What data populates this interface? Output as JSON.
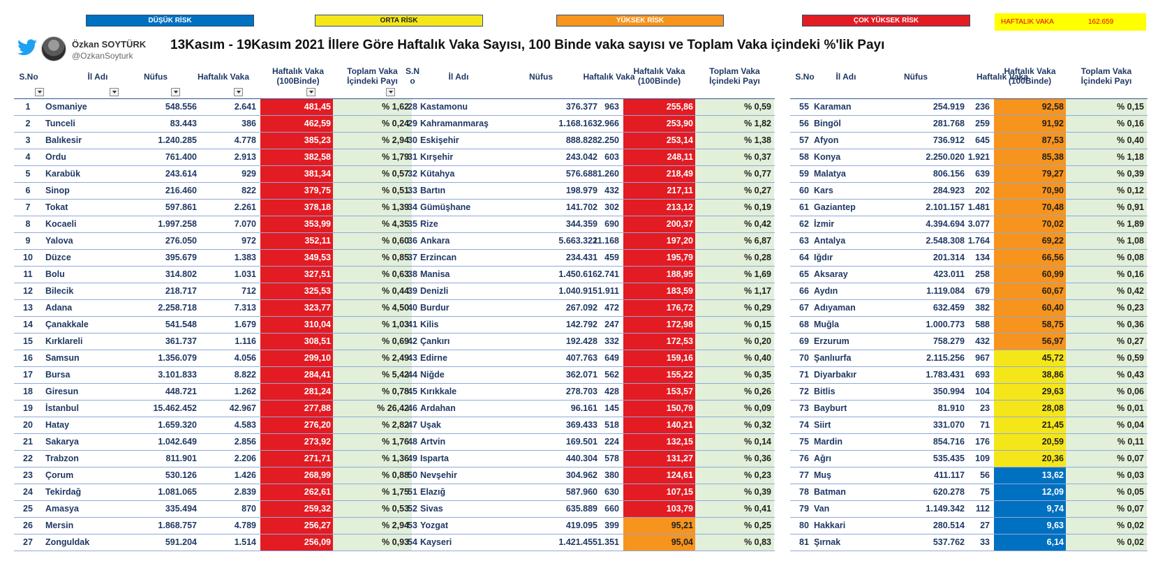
{
  "legend": {
    "low": "DÜŞÜK RİSK",
    "mid": "ORTA RİSK",
    "high": "YÜKSEK RİSK",
    "very_high": "ÇOK YÜKSEK RİSK"
  },
  "weekly": {
    "label": "HAFTALIK VAKA",
    "value": "162.659"
  },
  "user": {
    "name": "Özkan SOYTÜRK",
    "handle": "@OzkanSoyturk"
  },
  "title": "13Kasım - 19Kasım 2021  İllere Göre Haftalık Vaka Sayısı, 100 Binde vaka sayısı ve Toplam Vaka içindeki %'lik Payı",
  "headers": {
    "no": "S.No",
    "no2": "S.N\no",
    "name": "İl Adı",
    "pop": "Nüfus",
    "weekly": "Haftalık Vaka",
    "rate": "Haftalık Vaka\n(100Binde)",
    "share": "Toplam Vaka\nİçindeki Payı"
  },
  "colors": {
    "very_high": "#e31b23",
    "high": "#f7941d",
    "mid": "#f5e61a",
    "low": "#0070c0"
  },
  "tables": [
    [
      [
        "1",
        "Osmaniye",
        "548.556",
        "2.641",
        "481,45",
        "% 1,62",
        "vhigh"
      ],
      [
        "2",
        "Tunceli",
        "83.443",
        "386",
        "462,59",
        "% 0,24",
        "vhigh"
      ],
      [
        "3",
        "Balıkesir",
        "1.240.285",
        "4.778",
        "385,23",
        "% 2,94",
        "vhigh"
      ],
      [
        "4",
        "Ordu",
        "761.400",
        "2.913",
        "382,58",
        "% 1,79",
        "vhigh"
      ],
      [
        "5",
        "Karabük",
        "243.614",
        "929",
        "381,34",
        "% 0,57",
        "vhigh"
      ],
      [
        "6",
        "Sinop",
        "216.460",
        "822",
        "379,75",
        "% 0,51",
        "vhigh"
      ],
      [
        "7",
        "Tokat",
        "597.861",
        "2.261",
        "378,18",
        "% 1,39",
        "vhigh"
      ],
      [
        "8",
        "Kocaeli",
        "1.997.258",
        "7.070",
        "353,99",
        "% 4,35",
        "vhigh"
      ],
      [
        "9",
        "Yalova",
        "276.050",
        "972",
        "352,11",
        "% 0,60",
        "vhigh"
      ],
      [
        "10",
        "Düzce",
        "395.679",
        "1.383",
        "349,53",
        "% 0,85",
        "vhigh"
      ],
      [
        "11",
        "Bolu",
        "314.802",
        "1.031",
        "327,51",
        "% 0,63",
        "vhigh"
      ],
      [
        "12",
        "Bilecik",
        "218.717",
        "712",
        "325,53",
        "% 0,44",
        "vhigh"
      ],
      [
        "13",
        "Adana",
        "2.258.718",
        "7.313",
        "323,77",
        "% 4,50",
        "vhigh"
      ],
      [
        "14",
        "Çanakkale",
        "541.548",
        "1.679",
        "310,04",
        "% 1,03",
        "vhigh"
      ],
      [
        "15",
        "Kırklareli",
        "361.737",
        "1.116",
        "308,51",
        "% 0,69",
        "vhigh"
      ],
      [
        "16",
        "Samsun",
        "1.356.079",
        "4.056",
        "299,10",
        "% 2,49",
        "vhigh"
      ],
      [
        "17",
        "Bursa",
        "3.101.833",
        "8.822",
        "284,41",
        "% 5,42",
        "vhigh"
      ],
      [
        "18",
        "Giresun",
        "448.721",
        "1.262",
        "281,24",
        "% 0,78",
        "vhigh"
      ],
      [
        "19",
        "İstanbul",
        "15.462.452",
        "42.967",
        "277,88",
        "% 26,42",
        "vhigh"
      ],
      [
        "20",
        "Hatay",
        "1.659.320",
        "4.583",
        "276,20",
        "% 2,82",
        "vhigh"
      ],
      [
        "21",
        "Sakarya",
        "1.042.649",
        "2.856",
        "273,92",
        "% 1,76",
        "vhigh"
      ],
      [
        "22",
        "Trabzon",
        "811.901",
        "2.206",
        "271,71",
        "% 1,36",
        "vhigh"
      ],
      [
        "23",
        "Çorum",
        "530.126",
        "1.426",
        "268,99",
        "% 0,88",
        "vhigh"
      ],
      [
        "24",
        "Tekirdağ",
        "1.081.065",
        "2.839",
        "262,61",
        "% 1,75",
        "vhigh"
      ],
      [
        "25",
        "Amasya",
        "335.494",
        "870",
        "259,32",
        "% 0,53",
        "vhigh"
      ],
      [
        "26",
        "Mersin",
        "1.868.757",
        "4.789",
        "256,27",
        "% 2,94",
        "vhigh"
      ],
      [
        "27",
        "Zonguldak",
        "591.204",
        "1.514",
        "256,09",
        "% 0,93",
        "vhigh"
      ]
    ],
    [
      [
        "28",
        "Kastamonu",
        "376.377",
        "963",
        "255,86",
        "% 0,59",
        "vhigh"
      ],
      [
        "29",
        "Kahramanmaraş",
        "1.168.163",
        "2.966",
        "253,90",
        "% 1,82",
        "vhigh"
      ],
      [
        "30",
        "Eskişehir",
        "888.828",
        "2.250",
        "253,14",
        "% 1,38",
        "vhigh"
      ],
      [
        "31",
        "Kırşehir",
        "243.042",
        "603",
        "248,11",
        "% 0,37",
        "vhigh"
      ],
      [
        "32",
        "Kütahya",
        "576.688",
        "1.260",
        "218,49",
        "% 0,77",
        "vhigh"
      ],
      [
        "33",
        "Bartın",
        "198.979",
        "432",
        "217,11",
        "% 0,27",
        "vhigh"
      ],
      [
        "34",
        "Gümüşhane",
        "141.702",
        "302",
        "213,12",
        "% 0,19",
        "vhigh"
      ],
      [
        "35",
        "Rize",
        "344.359",
        "690",
        "200,37",
        "% 0,42",
        "vhigh"
      ],
      [
        "36",
        "Ankara",
        "5.663.322",
        "11.168",
        "197,20",
        "% 6,87",
        "vhigh"
      ],
      [
        "37",
        "Erzincan",
        "234.431",
        "459",
        "195,79",
        "% 0,28",
        "vhigh"
      ],
      [
        "38",
        "Manisa",
        "1.450.616",
        "2.741",
        "188,95",
        "% 1,69",
        "vhigh"
      ],
      [
        "39",
        "Denizli",
        "1.040.915",
        "1.911",
        "183,59",
        "% 1,17",
        "vhigh"
      ],
      [
        "40",
        "Burdur",
        "267.092",
        "472",
        "176,72",
        "% 0,29",
        "vhigh"
      ],
      [
        "41",
        "Kilis",
        "142.792",
        "247",
        "172,98",
        "% 0,15",
        "vhigh"
      ],
      [
        "42",
        "Çankırı",
        "192.428",
        "332",
        "172,53",
        "% 0,20",
        "vhigh"
      ],
      [
        "43",
        "Edirne",
        "407.763",
        "649",
        "159,16",
        "% 0,40",
        "vhigh"
      ],
      [
        "44",
        "Niğde",
        "362.071",
        "562",
        "155,22",
        "% 0,35",
        "vhigh"
      ],
      [
        "45",
        "Kırıkkale",
        "278.703",
        "428",
        "153,57",
        "% 0,26",
        "vhigh"
      ],
      [
        "46",
        "Ardahan",
        "96.161",
        "145",
        "150,79",
        "% 0,09",
        "vhigh"
      ],
      [
        "47",
        "Uşak",
        "369.433",
        "518",
        "140,21",
        "% 0,32",
        "vhigh"
      ],
      [
        "48",
        "Artvin",
        "169.501",
        "224",
        "132,15",
        "% 0,14",
        "vhigh"
      ],
      [
        "49",
        "Isparta",
        "440.304",
        "578",
        "131,27",
        "% 0,36",
        "vhigh"
      ],
      [
        "50",
        "Nevşehir",
        "304.962",
        "380",
        "124,61",
        "% 0,23",
        "vhigh"
      ],
      [
        "51",
        "Elazığ",
        "587.960",
        "630",
        "107,15",
        "% 0,39",
        "vhigh"
      ],
      [
        "52",
        "Sivas",
        "635.889",
        "660",
        "103,79",
        "% 0,41",
        "vhigh"
      ],
      [
        "53",
        "Yozgat",
        "419.095",
        "399",
        "95,21",
        "% 0,25",
        "high"
      ],
      [
        "54",
        "Kayseri",
        "1.421.455",
        "1.351",
        "95,04",
        "% 0,83",
        "high"
      ]
    ],
    [
      [
        "55",
        "Karaman",
        "254.919",
        "236",
        "92,58",
        "% 0,15",
        "high"
      ],
      [
        "56",
        "Bingöl",
        "281.768",
        "259",
        "91,92",
        "% 0,16",
        "high"
      ],
      [
        "57",
        "Afyon",
        "736.912",
        "645",
        "87,53",
        "% 0,40",
        "high"
      ],
      [
        "58",
        "Konya",
        "2.250.020",
        "1.921",
        "85,38",
        "% 1,18",
        "high"
      ],
      [
        "59",
        "Malatya",
        "806.156",
        "639",
        "79,27",
        "% 0,39",
        "high"
      ],
      [
        "60",
        "Kars",
        "284.923",
        "202",
        "70,90",
        "% 0,12",
        "high"
      ],
      [
        "61",
        "Gaziantep",
        "2.101.157",
        "1.481",
        "70,48",
        "% 0,91",
        "high"
      ],
      [
        "62",
        "İzmir",
        "4.394.694",
        "3.077",
        "70,02",
        "% 1,89",
        "high"
      ],
      [
        "63",
        "Antalya",
        "2.548.308",
        "1.764",
        "69,22",
        "% 1,08",
        "high"
      ],
      [
        "64",
        "Iğdır",
        "201.314",
        "134",
        "66,56",
        "% 0,08",
        "high"
      ],
      [
        "65",
        "Aksaray",
        "423.011",
        "258",
        "60,99",
        "% 0,16",
        "high"
      ],
      [
        "66",
        "Aydın",
        "1.119.084",
        "679",
        "60,67",
        "% 0,42",
        "high"
      ],
      [
        "67",
        "Adıyaman",
        "632.459",
        "382",
        "60,40",
        "% 0,23",
        "high"
      ],
      [
        "68",
        "Muğla",
        "1.000.773",
        "588",
        "58,75",
        "% 0,36",
        "high"
      ],
      [
        "69",
        "Erzurum",
        "758.279",
        "432",
        "56,97",
        "% 0,27",
        "high"
      ],
      [
        "70",
        "Şanlıurfa",
        "2.115.256",
        "967",
        "45,72",
        "% 0,59",
        "mid"
      ],
      [
        "71",
        "Diyarbakır",
        "1.783.431",
        "693",
        "38,86",
        "% 0,43",
        "mid"
      ],
      [
        "72",
        "Bitlis",
        "350.994",
        "104",
        "29,63",
        "% 0,06",
        "mid"
      ],
      [
        "73",
        "Bayburt",
        "81.910",
        "23",
        "28,08",
        "% 0,01",
        "mid"
      ],
      [
        "74",
        "Siirt",
        "331.070",
        "71",
        "21,45",
        "% 0,04",
        "mid"
      ],
      [
        "75",
        "Mardin",
        "854.716",
        "176",
        "20,59",
        "% 0,11",
        "mid"
      ],
      [
        "76",
        "Ağrı",
        "535.435",
        "109",
        "20,36",
        "% 0,07",
        "mid"
      ],
      [
        "77",
        "Muş",
        "411.117",
        "56",
        "13,62",
        "% 0,03",
        "low"
      ],
      [
        "78",
        "Batman",
        "620.278",
        "75",
        "12,09",
        "% 0,05",
        "low"
      ],
      [
        "79",
        "Van",
        "1.149.342",
        "112",
        "9,74",
        "% 0,07",
        "low"
      ],
      [
        "80",
        "Hakkari",
        "280.514",
        "27",
        "9,63",
        "% 0,02",
        "low"
      ],
      [
        "81",
        "Şırnak",
        "537.762",
        "33",
        "6,14",
        "% 0,02",
        "low"
      ]
    ]
  ]
}
